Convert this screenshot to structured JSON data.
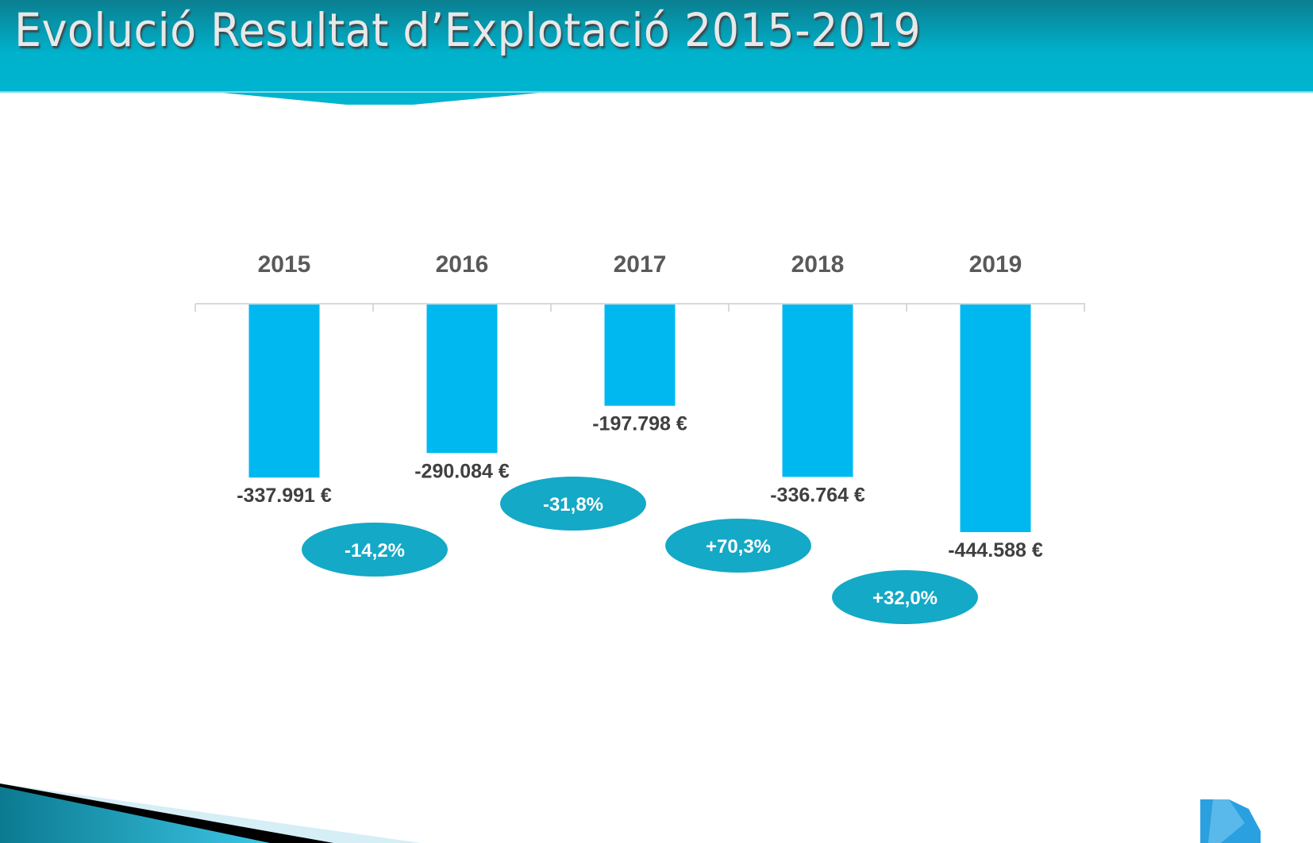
{
  "title": "Evolució Resultat d’Explotació 2015-2019",
  "colors": {
    "header": "#00b0cc",
    "bar": "#00b8f0",
    "bubble": "#14a9c6"
  },
  "chart_data": {
    "type": "bar",
    "title": "Evolució Resultat d’Explotació 2015-2019",
    "categories": [
      "2015",
      "2016",
      "2017",
      "2018",
      "2019"
    ],
    "values": [
      -337991,
      -290084,
      -197798,
      -336764,
      -444588
    ],
    "value_labels": [
      "-337.991 €",
      "-290.084 €",
      "-197.798 €",
      "-336.764 €",
      "-444.588 €"
    ],
    "changes": [
      "-14,2%",
      "-31,8%",
      "+70,3%",
      "+32,0%"
    ],
    "xlabel": "",
    "ylabel": "",
    "grid": false
  }
}
